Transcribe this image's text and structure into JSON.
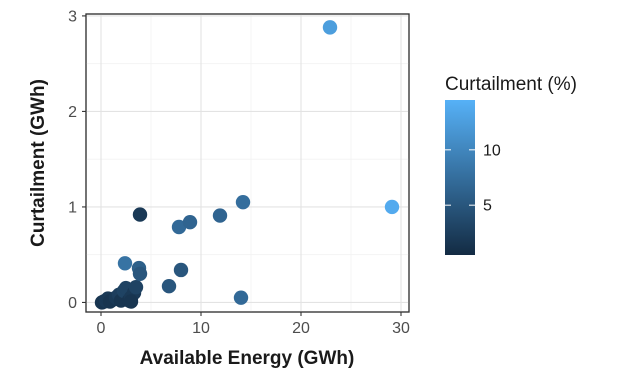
{
  "chart_data": {
    "type": "scatter",
    "xlabel": "Available Energy (GWh)",
    "ylabel": "Curtailment (GWh)",
    "xlim": [
      -1.5,
      30.8
    ],
    "ylim": [
      -0.1,
      3.02
    ],
    "x_ticks": [
      0,
      10,
      20,
      30
    ],
    "y_ticks": [
      0,
      1,
      2,
      3
    ],
    "x_minor_ticks": [
      5,
      15,
      25
    ],
    "y_minor_ticks": [
      0.5,
      1.5,
      2.5
    ],
    "grid": true,
    "legend": {
      "title": "Curtailment (%)",
      "placement": "right",
      "type": "colorbar",
      "range": [
        0.5,
        14.5
      ],
      "ticks": [
        5,
        10
      ],
      "color_low": "#132b43",
      "color_high": "#56b1f7"
    },
    "points": [
      {
        "x": 0.1,
        "y": 0.0,
        "c": 1.5
      },
      {
        "x": 0.3,
        "y": 0.01,
        "c": 1.5
      },
      {
        "x": 0.5,
        "y": 0.02,
        "c": 2
      },
      {
        "x": 0.7,
        "y": 0.04,
        "c": 2
      },
      {
        "x": 0.9,
        "y": 0.01,
        "c": 1.5
      },
      {
        "x": 1.2,
        "y": 0.03,
        "c": 1.5
      },
      {
        "x": 1.5,
        "y": 0.05,
        "c": 2
      },
      {
        "x": 1.8,
        "y": 0.08,
        "c": 2.5
      },
      {
        "x": 2.0,
        "y": 0.02,
        "c": 1.5
      },
      {
        "x": 2.3,
        "y": 0.12,
        "c": 3
      },
      {
        "x": 2.5,
        "y": 0.15,
        "c": 3
      },
      {
        "x": 2.8,
        "y": 0.02,
        "c": 1.5
      },
      {
        "x": 3.0,
        "y": 0.05,
        "c": 2
      },
      {
        "x": 3.3,
        "y": 0.1,
        "c": 2
      },
      {
        "x": 3.5,
        "y": 0.16,
        "c": 3
      },
      {
        "x": 3.0,
        "y": 0.01,
        "c": 1.5
      },
      {
        "x": 2.4,
        "y": 0.41,
        "c": 8
      },
      {
        "x": 3.8,
        "y": 0.36,
        "c": 6
      },
      {
        "x": 3.9,
        "y": 0.3,
        "c": 5
      },
      {
        "x": 3.9,
        "y": 0.92,
        "c": 2
      },
      {
        "x": 6.8,
        "y": 0.17,
        "c": 5
      },
      {
        "x": 7.8,
        "y": 0.79,
        "c": 7
      },
      {
        "x": 8.0,
        "y": 0.34,
        "c": 5
      },
      {
        "x": 8.9,
        "y": 0.84,
        "c": 6.5
      },
      {
        "x": 11.9,
        "y": 0.91,
        "c": 6.5
      },
      {
        "x": 14.0,
        "y": 0.05,
        "c": 7
      },
      {
        "x": 14.2,
        "y": 1.05,
        "c": 7.5
      },
      {
        "x": 22.9,
        "y": 2.88,
        "c": 12.5
      },
      {
        "x": 29.1,
        "y": 1.0,
        "c": 13.8
      }
    ]
  }
}
